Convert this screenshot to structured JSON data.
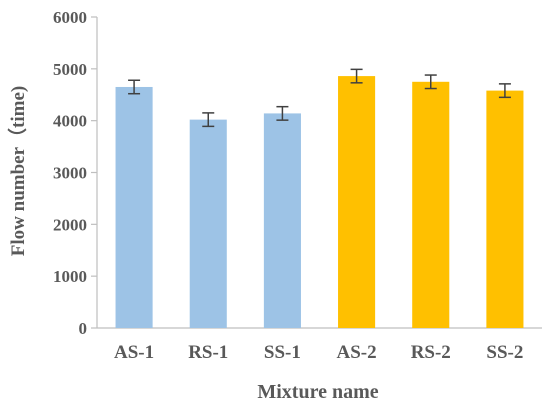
{
  "chart_data": {
    "type": "bar",
    "title": "",
    "xlabel": "Mixture name",
    "ylabel": "Flow number（time)",
    "categories": [
      "AS-1",
      "RS-1",
      "SS-1",
      "AS-2",
      "RS-2",
      "SS-2"
    ],
    "values": [
      4650,
      4020,
      4140,
      4860,
      4750,
      4580
    ],
    "errors": [
      130,
      130,
      130,
      130,
      130,
      130
    ],
    "colors": [
      "#9DC3E6",
      "#9DC3E6",
      "#9DC3E6",
      "#FFC000",
      "#FFC000",
      "#FFC000"
    ],
    "ylim": [
      0,
      6000
    ],
    "yticks": [
      "0",
      "1000",
      "2000",
      "3000",
      "4000",
      "5000",
      "6000"
    ],
    "grid": false,
    "legend": "none"
  }
}
